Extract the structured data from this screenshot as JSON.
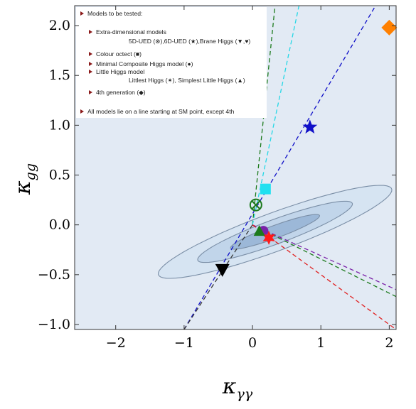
{
  "chart_data": {
    "type": "scatter",
    "xlabel": "κ",
    "xlabel_sub": "γγ",
    "ylabel": "κ",
    "ylabel_sub": "gg",
    "xlim": [
      -2.6,
      2.1
    ],
    "ylim": [
      -1.05,
      2.2
    ],
    "xticks": [
      -2,
      -1,
      0,
      1,
      2
    ],
    "xtick_labels": [
      "−2",
      "−1",
      "0",
      "1",
      "2"
    ],
    "yticks": [
      -1.0,
      -0.5,
      0.0,
      0.5,
      1.0,
      1.5,
      2.0
    ],
    "ytick_labels": [
      "−1.0",
      "−0.5",
      "0.0",
      "0.5",
      "1.0",
      "1.5",
      "2.0"
    ],
    "sm_point": [
      0,
      0
    ],
    "contours": [
      {
        "level": "inner",
        "center": [
          0.33,
          -0.07
        ],
        "semi_major": 1.22,
        "semi_minor": 0.12,
        "angle_deg": 14,
        "fill": "#9cb8d8"
      },
      {
        "level": "middle",
        "center": [
          0.33,
          -0.07
        ],
        "semi_major": 2.12,
        "semi_minor": 0.23,
        "angle_deg": 14,
        "fill": "#c1d5ea"
      },
      {
        "level": "outer",
        "center": [
          0.33,
          -0.07
        ],
        "semi_major": 3.2,
        "semi_minor": 0.36,
        "angle_deg": 14,
        "fill": "#d6e4f2"
      }
    ],
    "model_lines": [
      {
        "color": "#1c7a1c",
        "from": [
          0,
          0
        ],
        "to": [
          0.33,
          2.2
        ]
      },
      {
        "color": "#25d8e6",
        "from": [
          0,
          0
        ],
        "to": [
          0.68,
          2.2
        ]
      },
      {
        "color": "#1010c8",
        "from": [
          -1.0,
          -1.05
        ],
        "to": [
          1.8,
          2.2
        ]
      },
      {
        "color": "#333333",
        "from": [
          0,
          0
        ],
        "to": [
          -1.0,
          -1.05
        ]
      },
      {
        "color": "#1c7a1c",
        "from": [
          0,
          0
        ],
        "to": [
          2.1,
          -0.72
        ]
      },
      {
        "color": "#7a22a8",
        "from": [
          0,
          0
        ],
        "to": [
          2.1,
          -0.65
        ]
      },
      {
        "color": "#e02020",
        "from": [
          0,
          0
        ],
        "to": [
          2.1,
          -1.05
        ]
      }
    ],
    "points": [
      {
        "model": "5D-UED",
        "marker": "circle-x",
        "color": "#1c7a1c",
        "x": 0.05,
        "y": 0.2
      },
      {
        "model": "6D-UED",
        "marker": "star",
        "color": "#1010c8",
        "x": 0.84,
        "y": 0.98
      },
      {
        "model": "Brane Higgs",
        "marker": "triangle-down",
        "color": "#000000",
        "x": -0.44,
        "y": -0.45
      },
      {
        "model": "Brane Higgs",
        "marker": "heart",
        "color": "#c020a0",
        "x": 0.14,
        "y": -0.06
      },
      {
        "model": "Colour octect",
        "marker": "square",
        "color": "#20e0f0",
        "x": 0.19,
        "y": 0.36
      },
      {
        "model": "Minimal Composite Higgs model",
        "marker": "circle",
        "color": "#7a22a8",
        "x": 0.16,
        "y": -0.06
      },
      {
        "model": "Littlest Higgs",
        "marker": "star6",
        "color": "#ff1a1a",
        "x": 0.24,
        "y": -0.13
      },
      {
        "model": "Simplest Little Higgs",
        "marker": "triangle-up",
        "color": "#1c7a1c",
        "x": 0.1,
        "y": -0.06
      },
      {
        "model": "4th generation",
        "marker": "diamond",
        "color": "#ff8000",
        "x": 2.0,
        "y": 1.98
      }
    ],
    "legend": {
      "placement": "top-left",
      "entries": [
        {
          "text": "Models to be tested:",
          "level": 0,
          "bullet": true
        },
        {
          "text": "Extra-dimensional models",
          "level": 1,
          "bullet": true
        },
        {
          "text": "5D-UED (⊗),6D-UED (★),Brane Higgs (▼,♥)",
          "level": 2,
          "bullet": false
        },
        {
          "text": "Colour octect (■)",
          "level": 1,
          "bullet": true
        },
        {
          "text": "Minimal Composite Higgs model (●)",
          "level": 1,
          "bullet": true
        },
        {
          "text": "Little Higgs model",
          "level": 1,
          "bullet": true
        },
        {
          "text": "Littlest Higgs (✶), Simplest Little Higgs (▲)",
          "level": 2,
          "bullet": false
        },
        {
          "text": "4th generation (◆)",
          "level": 1,
          "bullet": true
        },
        {
          "text": "All models lie on a line starting at SM point, except 4th",
          "level": 0,
          "bullet": true
        }
      ]
    }
  }
}
